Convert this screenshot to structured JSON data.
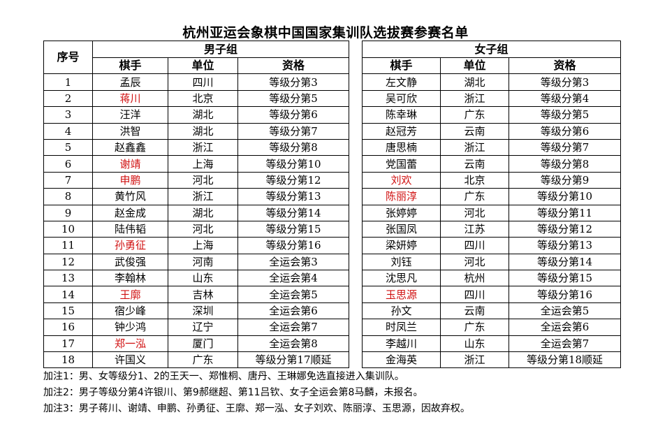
{
  "title": "杭州亚运会象棋中国国家集训队选拔赛参赛名单",
  "headers": {
    "index": "序号",
    "men_group": "男子组",
    "women_group": "女子组",
    "player": "棋手",
    "unit": "单位",
    "qualification": "资格"
  },
  "colors": {
    "withdrawn": "#d01010",
    "text": "#000000"
  },
  "men": [
    {
      "no": "1",
      "name": "孟辰",
      "unit": "四川",
      "qual": "等级分第3",
      "withdrawn": false
    },
    {
      "no": "2",
      "name": "蒋川",
      "unit": "北京",
      "qual": "等级分第5",
      "withdrawn": true
    },
    {
      "no": "3",
      "name": "汪洋",
      "unit": "湖北",
      "qual": "等级分第6",
      "withdrawn": false
    },
    {
      "no": "4",
      "name": "洪智",
      "unit": "湖北",
      "qual": "等级分第7",
      "withdrawn": false
    },
    {
      "no": "5",
      "name": "赵鑫鑫",
      "unit": "浙江",
      "qual": "等级分第8",
      "withdrawn": false
    },
    {
      "no": "6",
      "name": "谢靖",
      "unit": "上海",
      "qual": "等级分第10",
      "withdrawn": true
    },
    {
      "no": "7",
      "name": "申鹏",
      "unit": "河北",
      "qual": "等级分第12",
      "withdrawn": true
    },
    {
      "no": "8",
      "name": "黄竹风",
      "unit": "浙江",
      "qual": "等级分第13",
      "withdrawn": false
    },
    {
      "no": "9",
      "name": "赵金成",
      "unit": "湖北",
      "qual": "等级分第14",
      "withdrawn": false
    },
    {
      "no": "10",
      "name": "陆伟韬",
      "unit": "河北",
      "qual": "等级分第15",
      "withdrawn": false
    },
    {
      "no": "11",
      "name": "孙勇征",
      "unit": "上海",
      "qual": "等级分第16",
      "withdrawn": true
    },
    {
      "no": "12",
      "name": "武俊强",
      "unit": "河南",
      "qual": "全运会第3",
      "withdrawn": false
    },
    {
      "no": "13",
      "name": "李翰林",
      "unit": "山东",
      "qual": "全运会第4",
      "withdrawn": false
    },
    {
      "no": "14",
      "name": "王廓",
      "unit": "吉林",
      "qual": "全运会第5",
      "withdrawn": true
    },
    {
      "no": "15",
      "name": "宿少峰",
      "unit": "深圳",
      "qual": "全运会第6",
      "withdrawn": false
    },
    {
      "no": "16",
      "name": "钟少鸿",
      "unit": "辽宁",
      "qual": "全运会第7",
      "withdrawn": false
    },
    {
      "no": "17",
      "name": "郑一泓",
      "unit": "厦门",
      "qual": "全运会第8",
      "withdrawn": true
    },
    {
      "no": "18",
      "name": "许国义",
      "unit": "广东",
      "qual": "等级分第17顺延",
      "withdrawn": false
    }
  ],
  "women": [
    {
      "name": "左文静",
      "unit": "湖北",
      "qual": "等级分第3",
      "withdrawn": false
    },
    {
      "name": "吴可欣",
      "unit": "浙江",
      "qual": "等级分第4",
      "withdrawn": false
    },
    {
      "name": "陈幸琳",
      "unit": "广东",
      "qual": "等级分第5",
      "withdrawn": false
    },
    {
      "name": "赵冠芳",
      "unit": "云南",
      "qual": "等级分第6",
      "withdrawn": false
    },
    {
      "name": "唐思楠",
      "unit": "浙江",
      "qual": "等级分第7",
      "withdrawn": false
    },
    {
      "name": "党国蕾",
      "unit": "云南",
      "qual": "等级分第8",
      "withdrawn": false
    },
    {
      "name": "刘欢",
      "unit": "北京",
      "qual": "等级分第9",
      "withdrawn": true
    },
    {
      "name": "陈丽淳",
      "unit": "广东",
      "qual": "等级分第10",
      "withdrawn": true
    },
    {
      "name": "张婷婷",
      "unit": "河北",
      "qual": "等级分第11",
      "withdrawn": false
    },
    {
      "name": "张国凤",
      "unit": "江苏",
      "qual": "等级分第12",
      "withdrawn": false
    },
    {
      "name": "梁妍婷",
      "unit": "四川",
      "qual": "等级分第13",
      "withdrawn": false
    },
    {
      "name": "刘钰",
      "unit": "河北",
      "qual": "等级分第14",
      "withdrawn": false
    },
    {
      "name": "沈思凡",
      "unit": "杭州",
      "qual": "等级分第15",
      "withdrawn": false
    },
    {
      "name": "玉思源",
      "unit": "四川",
      "qual": "等级分第16",
      "withdrawn": true
    },
    {
      "name": "孙文",
      "unit": "云南",
      "qual": "全运会第5",
      "withdrawn": false
    },
    {
      "name": "时凤兰",
      "unit": "广东",
      "qual": "全运会第6",
      "withdrawn": false
    },
    {
      "name": "李越川",
      "unit": "山东",
      "qual": "全运会第7",
      "withdrawn": false
    },
    {
      "name": "金海英",
      "unit": "浙江",
      "qual": "等级分第18顺延",
      "withdrawn": false
    }
  ],
  "notes": [
    "加注1：男、女等级分1、2的王天一、郑惟桐、唐丹、王琳娜免选直接进入集训队。",
    "加注2：男子等级分第4许银川、第9郝继超、第11吕钦、女子全运会第8马麟，未报名。",
    "加注3：男子蒋川、谢靖、申鹏、孙勇征、王廓、郑一泓、女子刘欢、陈丽淳、玉思源，因故弃权。"
  ]
}
